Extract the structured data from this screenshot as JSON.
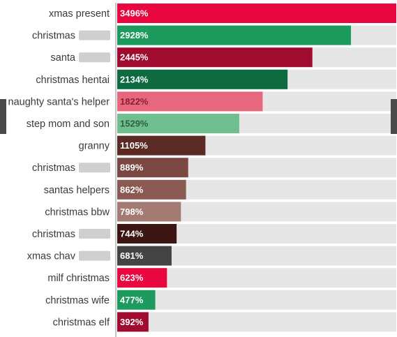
{
  "chart_data": {
    "type": "bar",
    "orientation": "horizontal",
    "title": "",
    "xlabel": "",
    "ylabel": "",
    "xlim": [
      0,
      3496
    ],
    "grid": false,
    "legend": "none",
    "track_color": "#e6e6e6",
    "bars": [
      {
        "category": "xmas present",
        "value": 3496,
        "label": "3496%",
        "color": "#e8073f",
        "label_color": "#ffffff",
        "redacted": false
      },
      {
        "category": "christmas",
        "value": 2928,
        "label": "2928%",
        "color": "#1d9b5f",
        "label_color": "#ffffff",
        "redacted": true
      },
      {
        "category": "santa",
        "value": 2445,
        "label": "2445%",
        "color": "#a00c30",
        "label_color": "#ffffff",
        "redacted": true
      },
      {
        "category": "christmas hentai",
        "value": 2134,
        "label": "2134%",
        "color": "#0e6b40",
        "label_color": "#ffffff",
        "redacted": false
      },
      {
        "category": "naughty santa's helper",
        "value": 1822,
        "label": "1822%",
        "color": "#e7687d",
        "label_color": "#8a2030",
        "redacted": false
      },
      {
        "category": "step mom and son",
        "value": 1529,
        "label": "1529%",
        "color": "#6fbf8f",
        "label_color": "#2d5f40",
        "redacted": false
      },
      {
        "category": "granny",
        "value": 1105,
        "label": "1105%",
        "color": "#5b2a22",
        "label_color": "#ffffff",
        "redacted": false
      },
      {
        "category": "christmas",
        "value": 889,
        "label": "889%",
        "color": "#7b4841",
        "label_color": "#ffffff",
        "redacted": true
      },
      {
        "category": "santas helpers",
        "value": 862,
        "label": "862%",
        "color": "#8a5951",
        "label_color": "#ffffff",
        "redacted": false
      },
      {
        "category": "christmas bbw",
        "value": 798,
        "label": "798%",
        "color": "#a47b72",
        "label_color": "#ffffff",
        "redacted": false
      },
      {
        "category": "christmas",
        "value": 744,
        "label": "744%",
        "color": "#3d1512",
        "label_color": "#ffffff",
        "redacted": true
      },
      {
        "category": "xmas chav",
        "value": 681,
        "label": "681%",
        "color": "#444444",
        "label_color": "#ffffff",
        "redacted": true
      },
      {
        "category": "milf christmas",
        "value": 623,
        "label": "623%",
        "color": "#e8073f",
        "label_color": "#ffffff",
        "redacted": false
      },
      {
        "category": "christmas wife",
        "value": 477,
        "label": "477%",
        "color": "#1d9b5f",
        "label_color": "#ffffff",
        "redacted": false
      },
      {
        "category": "christmas elf",
        "value": 392,
        "label": "392%",
        "color": "#a00c30",
        "label_color": "#ffffff",
        "redacted": false
      }
    ]
  }
}
